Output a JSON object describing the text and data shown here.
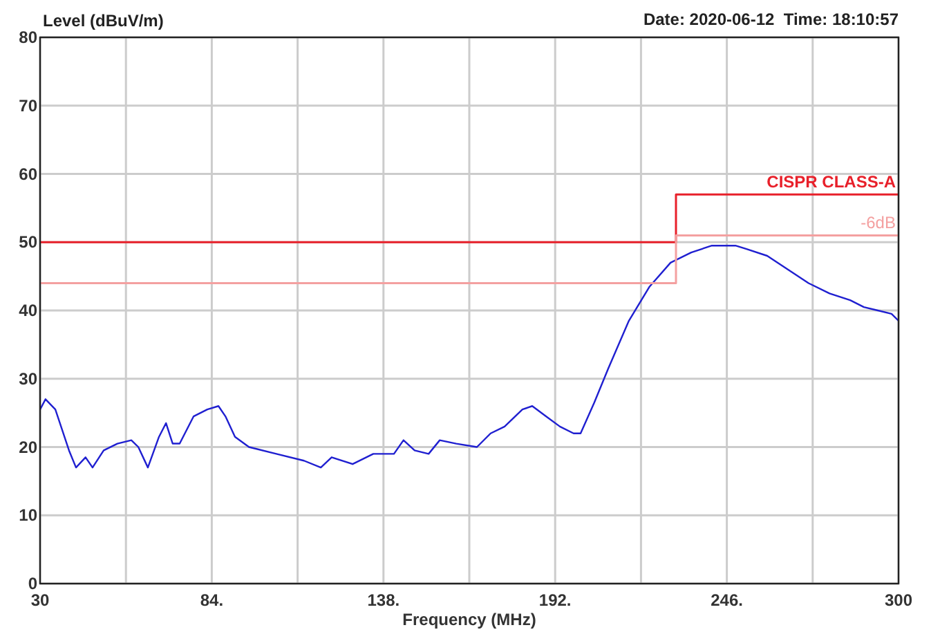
{
  "chart_data": {
    "type": "line",
    "ylabel": "Level (dBuV/m)",
    "xlabel": "Frequency (MHz)",
    "annotations": [
      "Date: 2020-06-12  Time: 18:10:57"
    ],
    "xlim": [
      30,
      300
    ],
    "ylim": [
      0,
      80
    ],
    "xticks": [
      30,
      {
        "value": 57,
        "label": null
      },
      {
        "value": 84,
        "label": "84."
      },
      {
        "value": 111,
        "label": null
      },
      {
        "value": 138,
        "label": "138."
      },
      {
        "value": 165,
        "label": null
      },
      {
        "value": 192,
        "label": "192."
      },
      {
        "value": 219,
        "label": null
      },
      {
        "value": 246,
        "label": "246."
      },
      {
        "value": 273,
        "label": null
      },
      300
    ],
    "yticks": [
      0,
      10,
      20,
      30,
      40,
      50,
      60,
      70,
      80
    ],
    "grid": true,
    "marker": "none",
    "line_style": "solid",
    "series": [
      {
        "color": "#1f1fd0",
        "x": [
          30,
          31.7,
          34.8,
          39.1,
          41.3,
          44.3,
          46.5,
          50,
          54.3,
          58.7,
          60.9,
          63.9,
          67.4,
          69.6,
          71.7,
          73.9,
          78.3,
          82.6,
          86.1,
          88.3,
          91.3,
          95.7,
          104.3,
          113,
          118.3,
          121.7,
          128.3,
          134.8,
          141.3,
          144.3,
          147.8,
          152.2,
          155.7,
          160.9,
          167.4,
          171.7,
          176.1,
          181.7,
          184.8,
          189.1,
          193.5,
          197.8,
          200,
          204.3,
          208.7,
          215.2,
          221.7,
          228.3,
          234.8,
          241.3,
          248.7,
          252.2,
          258.7,
          265.2,
          271.7,
          278.3,
          284.8,
          289.1,
          293.5,
          297.8,
          300
        ],
        "values": [
          25.5,
          27,
          25.5,
          19.5,
          17,
          18.5,
          17,
          19.5,
          20.5,
          21,
          20,
          17,
          21.5,
          23.5,
          20.5,
          20.5,
          24.5,
          25.5,
          26,
          24.5,
          21.5,
          20,
          19,
          18,
          17,
          18.5,
          17.5,
          19,
          19,
          21,
          19.5,
          19,
          21,
          20.5,
          20,
          22,
          23,
          25.5,
          26,
          24.5,
          23,
          22,
          22,
          26.5,
          31.5,
          38.5,
          43.5,
          47,
          48.5,
          49.5,
          49.5,
          49,
          48,
          46,
          44,
          42.5,
          41.5,
          40.5,
          40,
          39.5,
          38.5
        ]
      },
      {
        "name": "CISPR CLASS-A",
        "color": "#e8202a",
        "x": [
          30,
          230,
          230,
          300
        ],
        "values": [
          50,
          50,
          57,
          57
        ]
      },
      {
        "name": "-6dB",
        "color": "#f4a0a0",
        "x": [
          30,
          230,
          230,
          300
        ],
        "values": [
          44,
          44,
          51,
          51
        ]
      }
    ]
  }
}
